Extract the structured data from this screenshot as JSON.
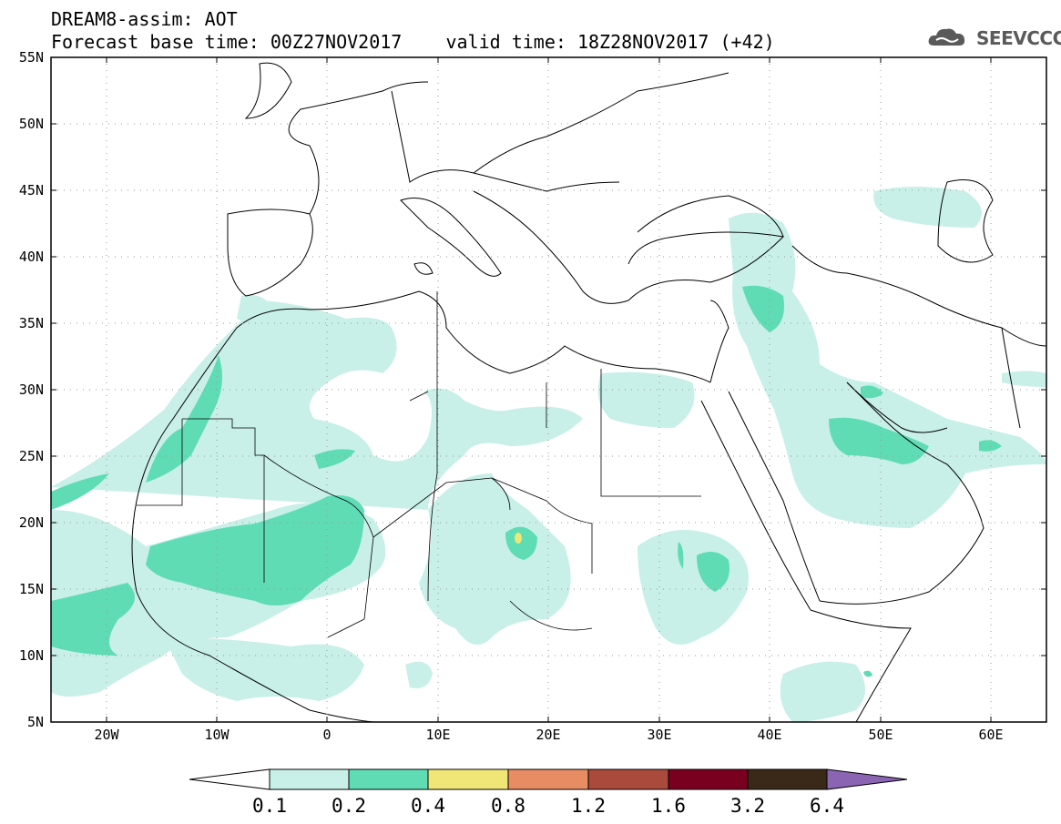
{
  "title": {
    "line1": "DREAM8-assim: AOT",
    "line2": "Forecast base time: 00Z27NOV2017    valid time: 18Z28NOV2017 (+42)"
  },
  "logo": {
    "text": "SEEVCCC",
    "icon": "cloud-icon",
    "color": "#5a5a5a"
  },
  "map": {
    "lon_range": [
      -25,
      65
    ],
    "lat_range": [
      5,
      55
    ],
    "grid": true,
    "lat_ticks": [
      "55N",
      "50N",
      "45N",
      "40N",
      "35N",
      "30N",
      "25N",
      "20N",
      "15N",
      "10N",
      "5N"
    ],
    "lon_ticks": [
      "20W",
      "10W",
      "0",
      "10E",
      "20E",
      "30E",
      "40E",
      "50E",
      "60E"
    ],
    "colors": {
      "0.1-0.2": "#c8f0e8",
      "0.2-0.4": "#5fdcb4",
      "0.4-0.8": "#f0e678"
    }
  },
  "colorbar": {
    "labels": [
      "0.1",
      "0.2",
      "0.4",
      "0.8",
      "1.2",
      "1.6",
      "3.2",
      "6.4"
    ],
    "colors": [
      "#ffffff",
      "#c8f0e8",
      "#5fdcb4",
      "#f0e678",
      "#e88c64",
      "#aa4a3c",
      "#7a0020",
      "#3a2818",
      "#8c64b4"
    ]
  }
}
